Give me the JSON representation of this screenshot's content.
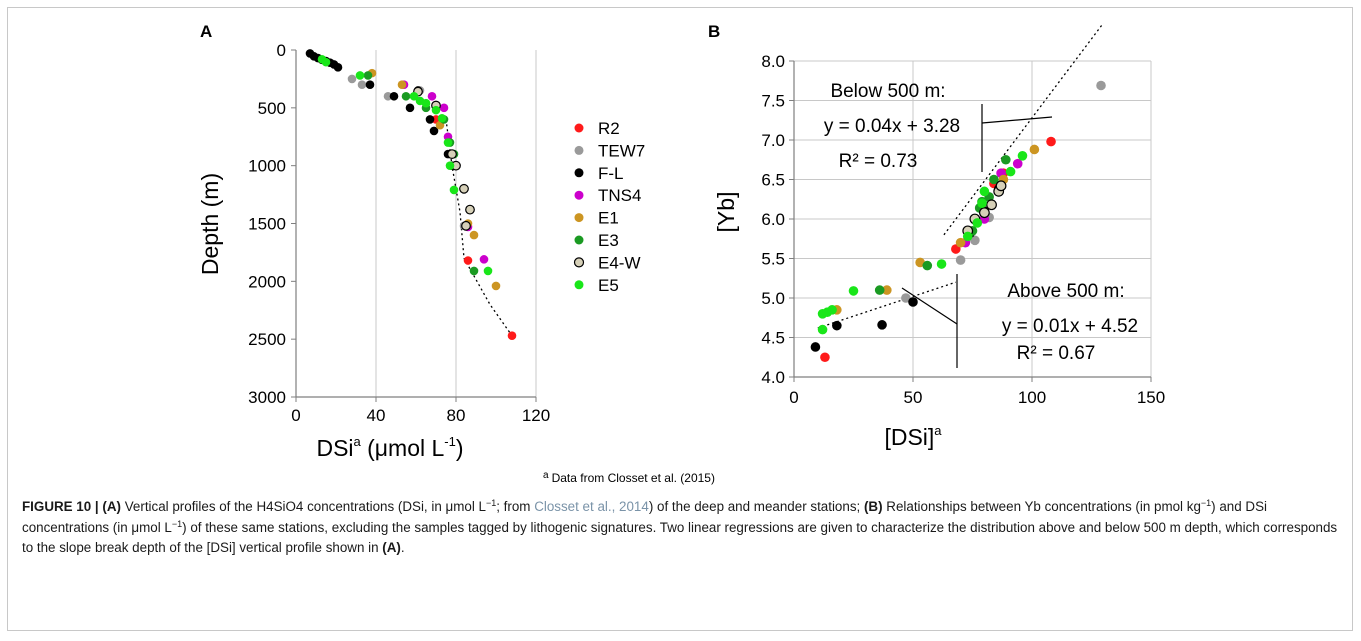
{
  "colors": {
    "R2": "#ff1a1a",
    "TEW7": "#9a9a9a",
    "F-L": "#000000",
    "TNS4": "#cc00cc",
    "E1": "#cc9522",
    "E3": "#1a9a22",
    "E4-W": "#d6d0b8",
    "E5": "#19e619",
    "grid": "#c8c8c8",
    "text": "#000000",
    "cite": "#7a93a8"
  },
  "legend": {
    "items": [
      "R2",
      "TEW7",
      "F-L",
      "TNS4",
      "E1",
      "E3",
      "E4-W",
      "E5"
    ]
  },
  "footnote": {
    "marker": "a",
    "text": "Data from Closset et al. (2015)"
  },
  "caption": {
    "figure_label": "FIGURE 10 |",
    "a_label": "(A)",
    "a_text": " Vertical profiles of the H4SiO4 concentrations (DSi, in μmol L",
    "a_exp": "−1",
    "a_text2": "; from ",
    "a_cite": "Closset et al., 2014",
    "a_text3": ") of the deep and meander stations; ",
    "b_label": "(B)",
    "b_text": " Relationships between Yb concentrations (in pmol kg",
    "b_exp": "−1",
    "b_text2": ") and DSi concentrations (in μmol L",
    "b_exp2": "−1",
    "b_text3": ") of these same stations, excluding the samples tagged by lithogenic signatures. Two linear regressions are given to characterize the distribution above and below 500 m depth, which corresponds to the slope break depth of the [DSi] vertical profile shown in ",
    "end_label": "(A)",
    "end_text": "."
  },
  "chart_data": [
    {
      "panel": "A",
      "type": "scatter",
      "xlabel": "DSi",
      "xlabel_sup": "a",
      "xlabel_unit": " (μmol L",
      "xlabel_unit_sup": "-1",
      "xlabel_end": ")",
      "ylabel": "Depth (m)",
      "xlim": [
        0,
        120
      ],
      "ylim": [
        3000,
        0
      ],
      "y_inverted": true,
      "xticks": [
        0,
        40,
        80,
        120
      ],
      "xtick_labels": [
        "0",
        "40",
        "80",
        "120"
      ],
      "yticks": [
        0,
        500,
        1000,
        1500,
        2000,
        2500,
        3000
      ],
      "ytick_labels": [
        "0",
        "500",
        "1000",
        "1500",
        "2000",
        "2500",
        "3000"
      ],
      "grid": "vertical",
      "trend": {
        "style": "dotted",
        "points": [
          [
            75,
            600
          ],
          [
            78,
            1000
          ],
          [
            82,
            1400
          ],
          [
            84,
            1800
          ],
          [
            97,
            2200
          ],
          [
            108,
            2470
          ]
        ]
      },
      "series": [
        {
          "name": "R2",
          "points": [
            [
              86,
              1820
            ],
            [
              108,
              2470
            ],
            [
              70,
              600
            ],
            [
              72,
              610
            ]
          ]
        },
        {
          "name": "TEW7",
          "points": [
            [
              28,
              250
            ],
            [
              33,
              300
            ],
            [
              46,
              400
            ],
            [
              62,
              350
            ],
            [
              84,
              1520
            ]
          ]
        },
        {
          "name": "F-L",
          "points": [
            [
              7,
              30
            ],
            [
              9,
              55
            ],
            [
              11,
              70
            ],
            [
              13,
              85
            ],
            [
              15,
              95
            ],
            [
              17,
              110
            ],
            [
              19,
              125
            ],
            [
              21,
              150
            ],
            [
              37,
              300
            ],
            [
              49,
              400
            ],
            [
              57,
              500
            ],
            [
              61,
              350
            ],
            [
              67,
              600
            ],
            [
              69,
              700
            ],
            [
              76,
              900
            ],
            [
              78,
              1000
            ]
          ]
        },
        {
          "name": "TNS4",
          "points": [
            [
              54,
              300
            ],
            [
              68,
              400
            ],
            [
              74,
              500
            ],
            [
              76,
              750
            ],
            [
              86,
              1530
            ],
            [
              94,
              1810
            ]
          ]
        },
        {
          "name": "E1",
          "points": [
            [
              38,
              200
            ],
            [
              53,
              300
            ],
            [
              72,
              650
            ],
            [
              86,
              1500
            ],
            [
              89,
              1600
            ],
            [
              100,
              2040
            ]
          ]
        },
        {
          "name": "E3",
          "points": [
            [
              36,
              220
            ],
            [
              55,
              400
            ],
            [
              65,
              500
            ],
            [
              74,
              600
            ],
            [
              77,
              800
            ],
            [
              79,
              900
            ],
            [
              89,
              1910
            ]
          ]
        },
        {
          "name": "E4-W",
          "points": [
            [
              61,
              360
            ],
            [
              70,
              480
            ],
            [
              78,
              900
            ],
            [
              80,
              1000
            ],
            [
              84,
              1200
            ],
            [
              87,
              1380
            ],
            [
              85,
              1520
            ]
          ]
        },
        {
          "name": "E5",
          "points": [
            [
              13,
              80
            ],
            [
              15,
              105
            ],
            [
              32,
              220
            ],
            [
              59,
              400
            ],
            [
              62,
              440
            ],
            [
              65,
              460
            ],
            [
              70,
              520
            ],
            [
              73,
              590
            ],
            [
              76,
              800
            ],
            [
              77,
              1000
            ],
            [
              79,
              1210
            ],
            [
              96,
              1910
            ]
          ]
        }
      ]
    },
    {
      "panel": "B",
      "type": "scatter",
      "xlabel": "[DSi]",
      "xlabel_sup": "a",
      "ylabel": "[Yb]",
      "xlim": [
        0,
        150
      ],
      "ylim": [
        4.0,
        8.0
      ],
      "xticks": [
        0,
        50,
        100,
        150
      ],
      "xtick_labels": [
        "0",
        "50",
        "100",
        "150"
      ],
      "yticks": [
        4.0,
        4.5,
        5.0,
        5.5,
        6.0,
        6.5,
        7.0,
        7.5,
        8.0
      ],
      "ytick_labels": [
        "4.0",
        "4.5",
        "5.0",
        "5.5",
        "6.0",
        "6.5",
        "7.0",
        "7.5",
        "8.0"
      ],
      "grid": "both",
      "fits": [
        {
          "label": "Below 500 m:",
          "equation": "y = 0.04x + 3.28",
          "r2": "R² = 0.73",
          "x_range": [
            63,
            130
          ],
          "slope": 0.04,
          "intercept": 3.28
        },
        {
          "label": "Above 500 m:",
          "equation": "y = 0.01x + 4.52",
          "r2": "R² = 0.67",
          "x_range": [
            10,
            68
          ],
          "slope": 0.01,
          "intercept": 4.52
        }
      ],
      "series": [
        {
          "name": "R2",
          "points": [
            [
              13,
              4.25
            ],
            [
              108,
              6.98
            ],
            [
              88,
              6.58
            ],
            [
              84,
              6.45
            ],
            [
              68,
              5.62
            ]
          ]
        },
        {
          "name": "TEW7",
          "points": [
            [
              129,
              7.69
            ],
            [
              47,
              5.0
            ],
            [
              70,
              5.48
            ],
            [
              76,
              5.73
            ],
            [
              82,
              6.02
            ]
          ]
        },
        {
          "name": "F-L",
          "points": [
            [
              9,
              4.38
            ],
            [
              18,
              4.65
            ],
            [
              37,
              4.66
            ],
            [
              50,
              4.95
            ],
            [
              74,
              5.82
            ],
            [
              80,
              6.1
            ],
            [
              86,
              6.38
            ]
          ]
        },
        {
          "name": "TNS4",
          "points": [
            [
              94,
              6.7
            ],
            [
              87,
              6.58
            ],
            [
              80,
              6.0
            ],
            [
              72,
              5.7
            ]
          ]
        },
        {
          "name": "E1",
          "points": [
            [
              18,
              4.85
            ],
            [
              39,
              5.1
            ],
            [
              53,
              5.45
            ],
            [
              70,
              5.7
            ],
            [
              101,
              6.88
            ],
            [
              88,
              6.5
            ]
          ]
        },
        {
          "name": "E3",
          "points": [
            [
              36,
              5.1
            ],
            [
              56,
              5.41
            ],
            [
              75,
              5.85
            ],
            [
              78,
              6.14
            ],
            [
              79,
              6.22
            ],
            [
              82,
              6.28
            ],
            [
              89,
              6.75
            ],
            [
              84,
              6.5
            ]
          ]
        },
        {
          "name": "E4-W",
          "points": [
            [
              73,
              5.85
            ],
            [
              76,
              6.0
            ],
            [
              80,
              6.08
            ],
            [
              83,
              6.18
            ],
            [
              86,
              6.35
            ],
            [
              87,
              6.42
            ]
          ]
        },
        {
          "name": "E5",
          "points": [
            [
              12,
              4.6
            ],
            [
              12,
              4.8
            ],
            [
              14,
              4.82
            ],
            [
              16,
              4.85
            ],
            [
              25,
              5.09
            ],
            [
              62,
              5.43
            ],
            [
              73,
              5.78
            ],
            [
              77,
              5.95
            ],
            [
              79,
              6.2
            ],
            [
              80,
              6.35
            ],
            [
              96,
              6.8
            ],
            [
              91,
              6.6
            ]
          ]
        }
      ]
    }
  ]
}
